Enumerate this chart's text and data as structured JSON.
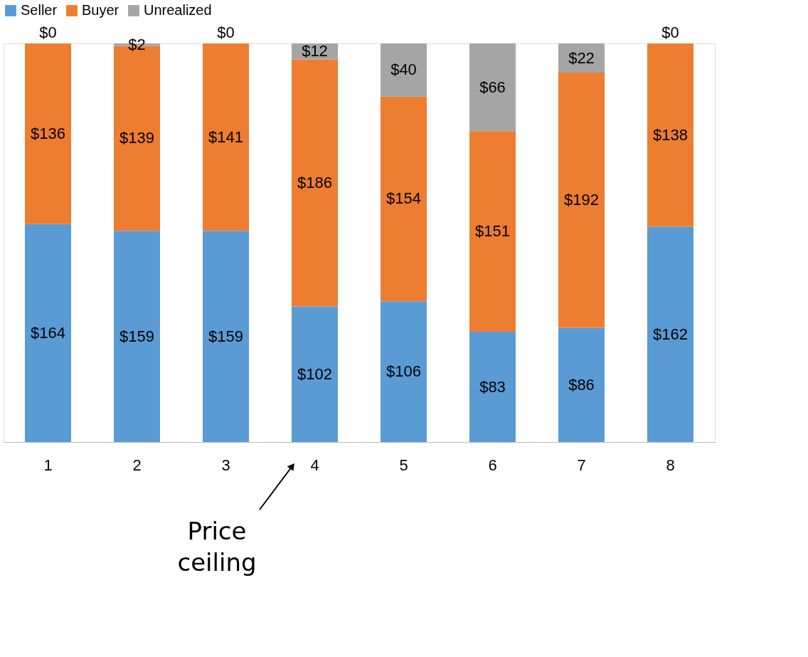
{
  "chart_data": {
    "type": "bar",
    "stacked": true,
    "categories": [
      "1",
      "2",
      "3",
      "4",
      "5",
      "6",
      "7",
      "8"
    ],
    "series": [
      {
        "name": "Seller",
        "color": "#5b9bd5",
        "values": [
          164,
          159,
          159,
          102,
          106,
          83,
          86,
          162
        ],
        "value_labels": [
          "$164",
          "$159",
          "$159",
          "$102",
          "$106",
          "$83",
          "$86",
          "$162"
        ]
      },
      {
        "name": "Buyer",
        "color": "#ed7d31",
        "values": [
          136,
          139,
          141,
          186,
          154,
          151,
          192,
          138
        ],
        "value_labels": [
          "$136",
          "$139",
          "$141",
          "$186",
          "$154",
          "$151",
          "$192",
          "$138"
        ]
      },
      {
        "name": "Unrealized",
        "color": "#a5a5a5",
        "values": [
          0,
          2,
          0,
          12,
          40,
          66,
          22,
          0
        ],
        "value_labels": [
          "$0",
          "$2",
          "$0",
          "$12",
          "$40",
          "$66",
          "$22",
          "$0"
        ]
      }
    ],
    "legend": "top",
    "grid": false,
    "annotations": [
      "Price ceiling"
    ]
  }
}
